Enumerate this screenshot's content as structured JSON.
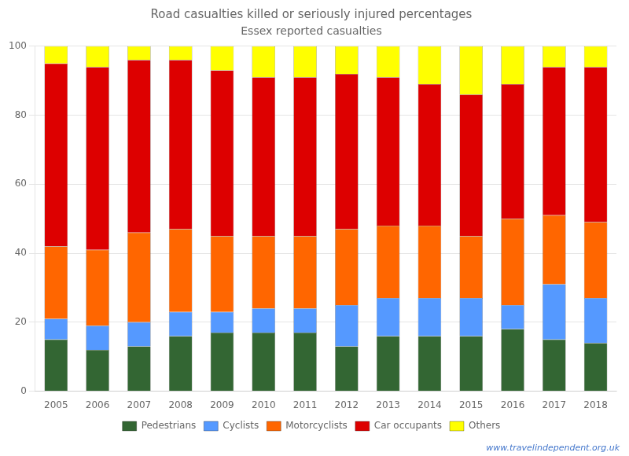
{
  "chart_data": {
    "type": "bar",
    "title": "Road casualties killed or seriously injured percentages",
    "subtitle": "Essex reported casualties",
    "annotations": [
      "www.travelindependent.org.uk"
    ],
    "categories": [
      "2005",
      "2006",
      "2007",
      "2008",
      "2009",
      "2010",
      "2011",
      "2012",
      "2013",
      "2014",
      "2015",
      "2016",
      "2017",
      "2018"
    ],
    "series": [
      {
        "name": "Pedestrians",
        "color": "#336633",
        "values": [
          15,
          12,
          13,
          16,
          17,
          17,
          17,
          13,
          16,
          16,
          16,
          18,
          15,
          14
        ]
      },
      {
        "name": "Cyclists",
        "color": "#5599ff",
        "values": [
          6,
          7,
          7,
          7,
          6,
          7,
          7,
          12,
          11,
          11,
          11,
          7,
          16,
          13
        ]
      },
      {
        "name": "Motorcyclists",
        "color": "#ff6600",
        "values": [
          21,
          22,
          26,
          24,
          22,
          21,
          21,
          22,
          21,
          21,
          18,
          25,
          20,
          22
        ]
      },
      {
        "name": "Car occupants",
        "color": "#dd0000",
        "values": [
          53,
          53,
          50,
          49,
          48,
          46,
          46,
          45,
          43,
          41,
          41,
          39,
          43,
          45
        ]
      },
      {
        "name": "Others",
        "color": "#ffff00",
        "values": [
          5,
          6,
          4,
          4,
          7,
          9,
          9,
          8,
          9,
          11,
          14,
          11,
          6,
          6
        ]
      }
    ],
    "stacked": true,
    "ylim": [
      0,
      100
    ],
    "yticks": [
      0,
      20,
      40,
      60,
      80,
      100
    ],
    "grid": true,
    "legend": "bottom"
  }
}
